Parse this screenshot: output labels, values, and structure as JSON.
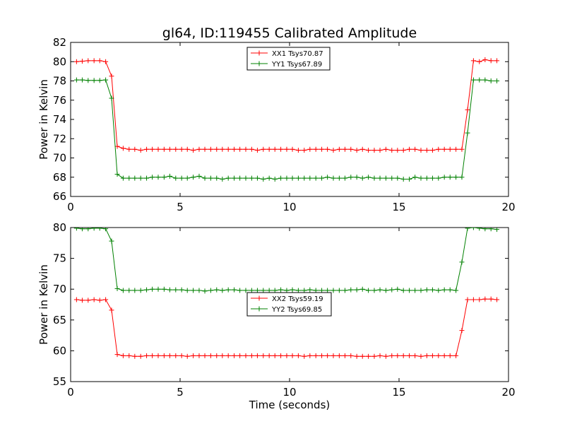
{
  "chart_data": [
    {
      "type": "line",
      "title": "gl64, ID:119455 Calibrated Amplitude",
      "xlabel": "",
      "ylabel": "Power in Kelvin",
      "xlim": [
        0,
        20
      ],
      "ylim": [
        66,
        82
      ],
      "xticks": [
        "0",
        "5",
        "10",
        "15",
        "20"
      ],
      "yticks": [
        "66",
        "68",
        "70",
        "72",
        "74",
        "76",
        "78",
        "80",
        "82"
      ],
      "grid": false,
      "legend_position": "top-center",
      "colors": {
        "XX1": "#ff0000",
        "YY1": "#008000"
      },
      "series": [
        {
          "name": "XX1 Tsys70.87",
          "color": "#ff0000",
          "x": [
            0.27,
            0.53,
            0.8,
            1.07,
            1.33,
            1.6,
            1.87,
            2.13,
            2.4,
            2.67,
            2.93,
            3.2,
            3.47,
            3.73,
            4.0,
            4.27,
            4.53,
            4.8,
            5.07,
            5.33,
            5.6,
            5.87,
            6.13,
            6.4,
            6.67,
            6.93,
            7.2,
            7.47,
            7.73,
            8.0,
            8.27,
            8.53,
            8.8,
            9.07,
            9.33,
            9.6,
            9.87,
            10.13,
            10.4,
            10.67,
            10.93,
            11.2,
            11.47,
            11.73,
            12.0,
            12.27,
            12.53,
            12.8,
            13.07,
            13.33,
            13.6,
            13.87,
            14.13,
            14.4,
            14.67,
            14.93,
            15.2,
            15.47,
            15.73,
            16.0,
            16.27,
            16.53,
            16.8,
            17.07,
            17.33,
            17.6,
            17.87,
            18.13,
            18.4,
            18.67,
            18.93,
            19.2,
            19.47
          ],
          "values": [
            80.0,
            80.05,
            80.1,
            80.1,
            80.1,
            80.0,
            78.5,
            71.2,
            71.0,
            70.9,
            70.9,
            70.8,
            70.9,
            70.9,
            70.9,
            70.9,
            70.9,
            70.9,
            70.9,
            70.9,
            70.8,
            70.9,
            70.9,
            70.9,
            70.9,
            70.9,
            70.9,
            70.9,
            70.9,
            70.9,
            70.9,
            70.8,
            70.9,
            70.9,
            70.9,
            70.9,
            70.9,
            70.9,
            70.8,
            70.8,
            70.9,
            70.9,
            70.9,
            70.9,
            70.8,
            70.9,
            70.9,
            70.9,
            70.8,
            70.9,
            70.8,
            70.8,
            70.8,
            70.9,
            70.8,
            70.8,
            70.8,
            70.9,
            70.9,
            70.8,
            70.8,
            70.8,
            70.9,
            70.9,
            70.9,
            70.9,
            70.9,
            75.0,
            80.1,
            80.0,
            80.2,
            80.1,
            80.1
          ]
        },
        {
          "name": "YY1 Tsys67.89",
          "color": "#008000",
          "x": [
            0.27,
            0.53,
            0.8,
            1.07,
            1.33,
            1.6,
            1.87,
            2.13,
            2.4,
            2.67,
            2.93,
            3.2,
            3.47,
            3.73,
            4.0,
            4.27,
            4.53,
            4.8,
            5.07,
            5.33,
            5.6,
            5.87,
            6.13,
            6.4,
            6.67,
            6.93,
            7.2,
            7.47,
            7.73,
            8.0,
            8.27,
            8.53,
            8.8,
            9.07,
            9.33,
            9.6,
            9.87,
            10.13,
            10.4,
            10.67,
            10.93,
            11.2,
            11.47,
            11.73,
            12.0,
            12.27,
            12.53,
            12.8,
            13.07,
            13.33,
            13.6,
            13.87,
            14.13,
            14.4,
            14.67,
            14.93,
            15.2,
            15.47,
            15.73,
            16.0,
            16.27,
            16.53,
            16.8,
            17.07,
            17.33,
            17.6,
            17.87,
            18.13,
            18.4,
            18.67,
            18.93,
            19.2,
            19.47
          ],
          "values": [
            78.1,
            78.1,
            78.05,
            78.05,
            78.05,
            78.1,
            76.2,
            68.3,
            67.9,
            67.9,
            67.9,
            67.9,
            67.9,
            68.0,
            68.0,
            68.0,
            68.1,
            67.9,
            67.9,
            67.9,
            68.0,
            68.1,
            67.9,
            67.9,
            67.9,
            67.8,
            67.9,
            67.9,
            67.9,
            67.9,
            67.9,
            67.9,
            67.8,
            67.9,
            67.8,
            67.9,
            67.9,
            67.9,
            67.9,
            67.9,
            67.9,
            67.9,
            67.9,
            68.0,
            67.9,
            67.9,
            67.9,
            68.0,
            68.0,
            67.9,
            68.0,
            67.9,
            67.9,
            67.9,
            67.9,
            67.9,
            67.8,
            67.8,
            68.0,
            67.9,
            67.9,
            67.9,
            67.9,
            68.0,
            68.0,
            68.0,
            68.0,
            72.6,
            78.1,
            78.1,
            78.1,
            78.0,
            78.0
          ]
        }
      ]
    },
    {
      "type": "line",
      "title": "",
      "xlabel": "Time (seconds)",
      "ylabel": "Power in Kelvin",
      "xlim": [
        0,
        20
      ],
      "ylim": [
        55,
        80
      ],
      "xticks": [
        "0",
        "5",
        "10",
        "15",
        "20"
      ],
      "yticks": [
        "55",
        "60",
        "65",
        "70",
        "75",
        "80"
      ],
      "grid": false,
      "legend_position": "center",
      "colors": {
        "XX2": "#ff0000",
        "YY2": "#008000"
      },
      "series": [
        {
          "name": "XX2 Tsys59.19",
          "color": "#ff0000",
          "x": [
            0.27,
            0.53,
            0.8,
            1.07,
            1.33,
            1.6,
            1.87,
            2.13,
            2.4,
            2.67,
            2.93,
            3.2,
            3.47,
            3.73,
            4.0,
            4.27,
            4.53,
            4.8,
            5.07,
            5.33,
            5.6,
            5.87,
            6.13,
            6.4,
            6.67,
            6.93,
            7.2,
            7.47,
            7.73,
            8.0,
            8.27,
            8.53,
            8.8,
            9.07,
            9.33,
            9.6,
            9.87,
            10.13,
            10.4,
            10.67,
            10.93,
            11.2,
            11.47,
            11.73,
            12.0,
            12.27,
            12.53,
            12.8,
            13.07,
            13.33,
            13.6,
            13.87,
            14.13,
            14.4,
            14.67,
            14.93,
            15.2,
            15.47,
            15.73,
            16.0,
            16.27,
            16.53,
            16.8,
            17.07,
            17.33,
            17.6,
            17.87,
            18.13,
            18.4,
            18.67,
            18.93,
            19.2,
            19.47
          ],
          "values": [
            68.3,
            68.2,
            68.2,
            68.3,
            68.2,
            68.3,
            66.6,
            59.4,
            59.2,
            59.2,
            59.1,
            59.1,
            59.2,
            59.2,
            59.2,
            59.2,
            59.2,
            59.2,
            59.2,
            59.1,
            59.2,
            59.2,
            59.2,
            59.2,
            59.2,
            59.2,
            59.2,
            59.2,
            59.2,
            59.2,
            59.2,
            59.2,
            59.2,
            59.2,
            59.2,
            59.2,
            59.2,
            59.2,
            59.2,
            59.1,
            59.2,
            59.2,
            59.2,
            59.2,
            59.2,
            59.2,
            59.2,
            59.2,
            59.1,
            59.1,
            59.1,
            59.1,
            59.2,
            59.1,
            59.2,
            59.2,
            59.2,
            59.2,
            59.2,
            59.1,
            59.2,
            59.2,
            59.2,
            59.2,
            59.2,
            59.2,
            63.3,
            68.3,
            68.3,
            68.3,
            68.4,
            68.4,
            68.3
          ],
          "x_override_note": ""
        },
        {
          "name": "YY2 Tsys69.85",
          "color": "#008000",
          "x": [
            0.27,
            0.53,
            0.8,
            1.07,
            1.33,
            1.6,
            1.87,
            2.13,
            2.4,
            2.67,
            2.93,
            3.2,
            3.47,
            3.73,
            4.0,
            4.27,
            4.53,
            4.8,
            5.07,
            5.33,
            5.6,
            5.87,
            6.13,
            6.4,
            6.67,
            6.93,
            7.2,
            7.47,
            7.73,
            8.0,
            8.27,
            8.53,
            8.8,
            9.07,
            9.33,
            9.6,
            9.87,
            10.13,
            10.4,
            10.67,
            10.93,
            11.2,
            11.47,
            11.73,
            12.0,
            12.27,
            12.53,
            12.8,
            13.07,
            13.33,
            13.6,
            13.87,
            14.13,
            14.4,
            14.67,
            14.93,
            15.2,
            15.47,
            15.73,
            16.0,
            16.27,
            16.53,
            16.8,
            17.07,
            17.33,
            17.6,
            17.87,
            18.13,
            18.4,
            18.67,
            18.93,
            19.2,
            19.47
          ],
          "values": [
            79.9,
            79.8,
            79.8,
            79.9,
            79.9,
            79.8,
            77.8,
            70.1,
            69.8,
            69.8,
            69.8,
            69.8,
            69.9,
            70.0,
            70.0,
            70.0,
            69.9,
            69.9,
            69.9,
            69.8,
            69.8,
            69.8,
            69.7,
            69.8,
            69.9,
            69.8,
            69.9,
            69.9,
            69.8,
            69.8,
            69.8,
            69.8,
            69.8,
            69.8,
            69.8,
            69.9,
            69.8,
            69.9,
            69.8,
            69.8,
            69.9,
            69.8,
            69.8,
            69.8,
            69.8,
            69.8,
            69.8,
            69.9,
            69.9,
            70.0,
            69.8,
            69.8,
            69.9,
            69.8,
            69.9,
            70.0,
            69.8,
            69.8,
            69.8,
            69.8,
            69.9,
            69.9,
            69.8,
            69.9,
            69.9,
            69.8,
            74.4,
            79.9,
            80.0,
            79.9,
            79.8,
            79.8,
            79.7
          ]
        }
      ]
    }
  ]
}
